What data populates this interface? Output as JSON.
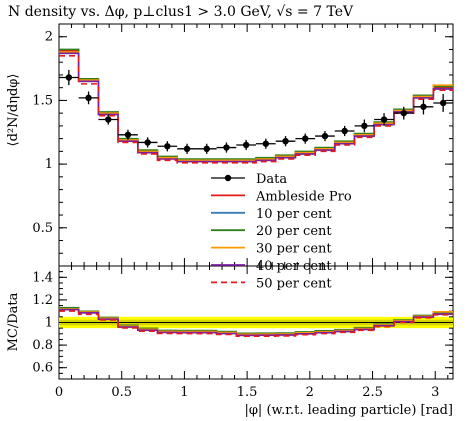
{
  "chart_data": [
    {
      "type": "line",
      "title": "N density vs. Δφ, p⊥clus1 > 3.0 GeV, √s = 7 TeV",
      "ylabel": "⟨d²N/dηdφ⟩",
      "xlim": [
        0,
        3.1416
      ],
      "ylim": [
        0.2,
        2.1
      ],
      "yticks": [
        "0.5",
        "1",
        "1.5",
        "2"
      ],
      "bin_edges": [
        0,
        0.1571,
        0.3142,
        0.4712,
        0.6283,
        0.7854,
        0.9425,
        1.0996,
        1.2566,
        1.4137,
        1.5708,
        1.7279,
        1.885,
        2.042,
        2.1991,
        2.3562,
        2.5133,
        2.6704,
        2.8274,
        2.9845,
        3.1416
      ],
      "data": {
        "name": "Data",
        "color": "#000000",
        "x": [
          0.0785,
          0.2356,
          0.3927,
          0.5498,
          0.7069,
          0.864,
          1.021,
          1.1781,
          1.3352,
          1.4923,
          1.6493,
          1.8064,
          1.9635,
          2.1206,
          2.2777,
          2.4347,
          2.5918,
          2.7489,
          2.906,
          3.0631
        ],
        "y": [
          1.68,
          1.52,
          1.35,
          1.23,
          1.17,
          1.14,
          1.12,
          1.12,
          1.13,
          1.15,
          1.16,
          1.18,
          1.2,
          1.22,
          1.26,
          1.3,
          1.35,
          1.4,
          1.45,
          1.48
        ],
        "err": [
          0.06,
          0.05,
          0.04,
          0.04,
          0.04,
          0.04,
          0.04,
          0.04,
          0.04,
          0.04,
          0.04,
          0.04,
          0.04,
          0.04,
          0.04,
          0.05,
          0.05,
          0.05,
          0.06,
          0.07
        ]
      },
      "series": [
        {
          "name": "Ambleside Pro",
          "color": "#e41a1c",
          "dash": "solid",
          "values": [
            1.89,
            1.66,
            1.4,
            1.19,
            1.1,
            1.05,
            1.03,
            1.03,
            1.03,
            1.03,
            1.04,
            1.06,
            1.09,
            1.12,
            1.17,
            1.23,
            1.32,
            1.42,
            1.53,
            1.6
          ]
        },
        {
          "name": "10 per cent",
          "color": "#377eb8",
          "dash": "solid",
          "values": [
            1.87,
            1.65,
            1.39,
            1.19,
            1.09,
            1.05,
            1.02,
            1.02,
            1.02,
            1.02,
            1.03,
            1.05,
            1.08,
            1.11,
            1.16,
            1.22,
            1.31,
            1.41,
            1.52,
            1.59
          ]
        },
        {
          "name": "20 per cent",
          "color": "#2f7f1f",
          "dash": "solid",
          "values": [
            1.9,
            1.67,
            1.41,
            1.2,
            1.11,
            1.06,
            1.04,
            1.04,
            1.04,
            1.04,
            1.05,
            1.07,
            1.1,
            1.13,
            1.18,
            1.24,
            1.33,
            1.43,
            1.54,
            1.61
          ]
        },
        {
          "name": "30 per cent",
          "color": "#ff9900",
          "dash": "solid",
          "values": [
            1.88,
            1.66,
            1.4,
            1.19,
            1.1,
            1.05,
            1.03,
            1.03,
            1.03,
            1.03,
            1.04,
            1.06,
            1.09,
            1.12,
            1.17,
            1.23,
            1.32,
            1.42,
            1.53,
            1.62
          ]
        },
        {
          "name": "40 per cent",
          "color": "#7b1fa2",
          "dash": "solid",
          "values": [
            1.87,
            1.65,
            1.39,
            1.18,
            1.09,
            1.04,
            1.02,
            1.02,
            1.02,
            1.02,
            1.03,
            1.05,
            1.08,
            1.11,
            1.16,
            1.22,
            1.31,
            1.41,
            1.52,
            1.59
          ]
        },
        {
          "name": "50 per cent",
          "color": "#e41a1c",
          "dash": "dashed",
          "values": [
            1.85,
            1.63,
            1.38,
            1.17,
            1.08,
            1.03,
            1.01,
            1.01,
            1.01,
            1.01,
            1.02,
            1.04,
            1.07,
            1.1,
            1.15,
            1.21,
            1.3,
            1.4,
            1.51,
            1.58
          ]
        }
      ],
      "legend": {
        "placement": "inside-center"
      }
    },
    {
      "type": "line",
      "ylabel": "MC/Data",
      "xlabel": "|φ| (w.r.t. leading particle) [rad]",
      "xlim": [
        0,
        3.1416
      ],
      "ylim": [
        0.5,
        1.5
      ],
      "xticks": [
        "0",
        "0.5",
        "1",
        "1.5",
        "2",
        "2.5",
        "3"
      ],
      "yticks": [
        "0.6",
        "0.8",
        "1",
        "1.2",
        "1.4"
      ],
      "data_band": {
        "color": "#ffff00",
        "lo": 0.95,
        "hi": 1.05,
        "inner_lo": 0.975,
        "inner_hi": 1.025,
        "inner_color": "#d4d400"
      }
    }
  ]
}
